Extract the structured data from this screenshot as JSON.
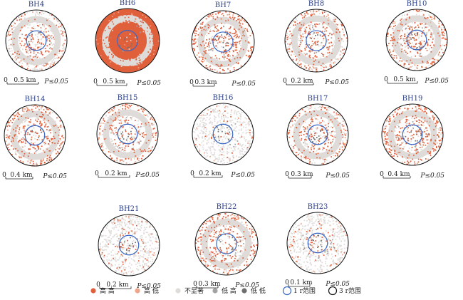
{
  "chart_data": {
    "type": "scatter",
    "title": "",
    "legend": [
      {
        "label": "高 高",
        "color": "#e0603c"
      },
      {
        "label": "高 低",
        "color": "#eea58a"
      },
      {
        "label": "不显著",
        "color": "#dedbd8"
      },
      {
        "label": "低 高",
        "color": "#a3a3a3"
      },
      {
        "label": "低 低",
        "color": "#6f6f6f"
      },
      {
        "label": "1 r范围",
        "color": "#3a67c4"
      },
      {
        "label": "3 r范围",
        "color": "#111111"
      }
    ],
    "panels": [
      {
        "name": "BH4",
        "scale_zero": "0",
        "scale_label": "0.5 km",
        "p_label": "P≤0.05"
      },
      {
        "name": "BH6",
        "scale_zero": "0",
        "scale_label": "0.5 km",
        "p_label": "P≤0.05"
      },
      {
        "name": "BH7",
        "scale_zero": "0",
        "scale_label": "0.3 km",
        "p_label": "P≤0.05"
      },
      {
        "name": "BH8",
        "scale_zero": "0",
        "scale_label": "0.2 km",
        "p_label": "P≤0.05"
      },
      {
        "name": "BH10",
        "scale_zero": "0",
        "scale_label": "0.5 km",
        "p_label": "P≤0.05"
      },
      {
        "name": "BH14",
        "scale_zero": "0",
        "scale_label": "0.4 km",
        "p_label": "P≤0.05"
      },
      {
        "name": "BH15",
        "scale_zero": "0",
        "scale_label": "0.2 km",
        "p_label": "P≤0.05"
      },
      {
        "name": "BH16",
        "scale_zero": "0",
        "scale_label": "0.2 km",
        "p_label": "P≤0.05"
      },
      {
        "name": "BH17",
        "scale_zero": "0",
        "scale_label": "0.3 km",
        "p_label": "P≤0.05"
      },
      {
        "name": "BH19",
        "scale_zero": "0",
        "scale_label": "0.4 km",
        "p_label": "P≤0.05"
      },
      {
        "name": "BH21",
        "scale_zero": "0",
        "scale_label": "0.2 km",
        "p_label": "P≤0.05"
      },
      {
        "name": "BH22",
        "scale_zero": "0",
        "scale_label": "0.3 km",
        "p_label": "P≤0.05"
      },
      {
        "name": "BH23",
        "scale_zero": "0",
        "scale_label": "0.1 km",
        "p_label": "P≤0.05"
      }
    ]
  }
}
